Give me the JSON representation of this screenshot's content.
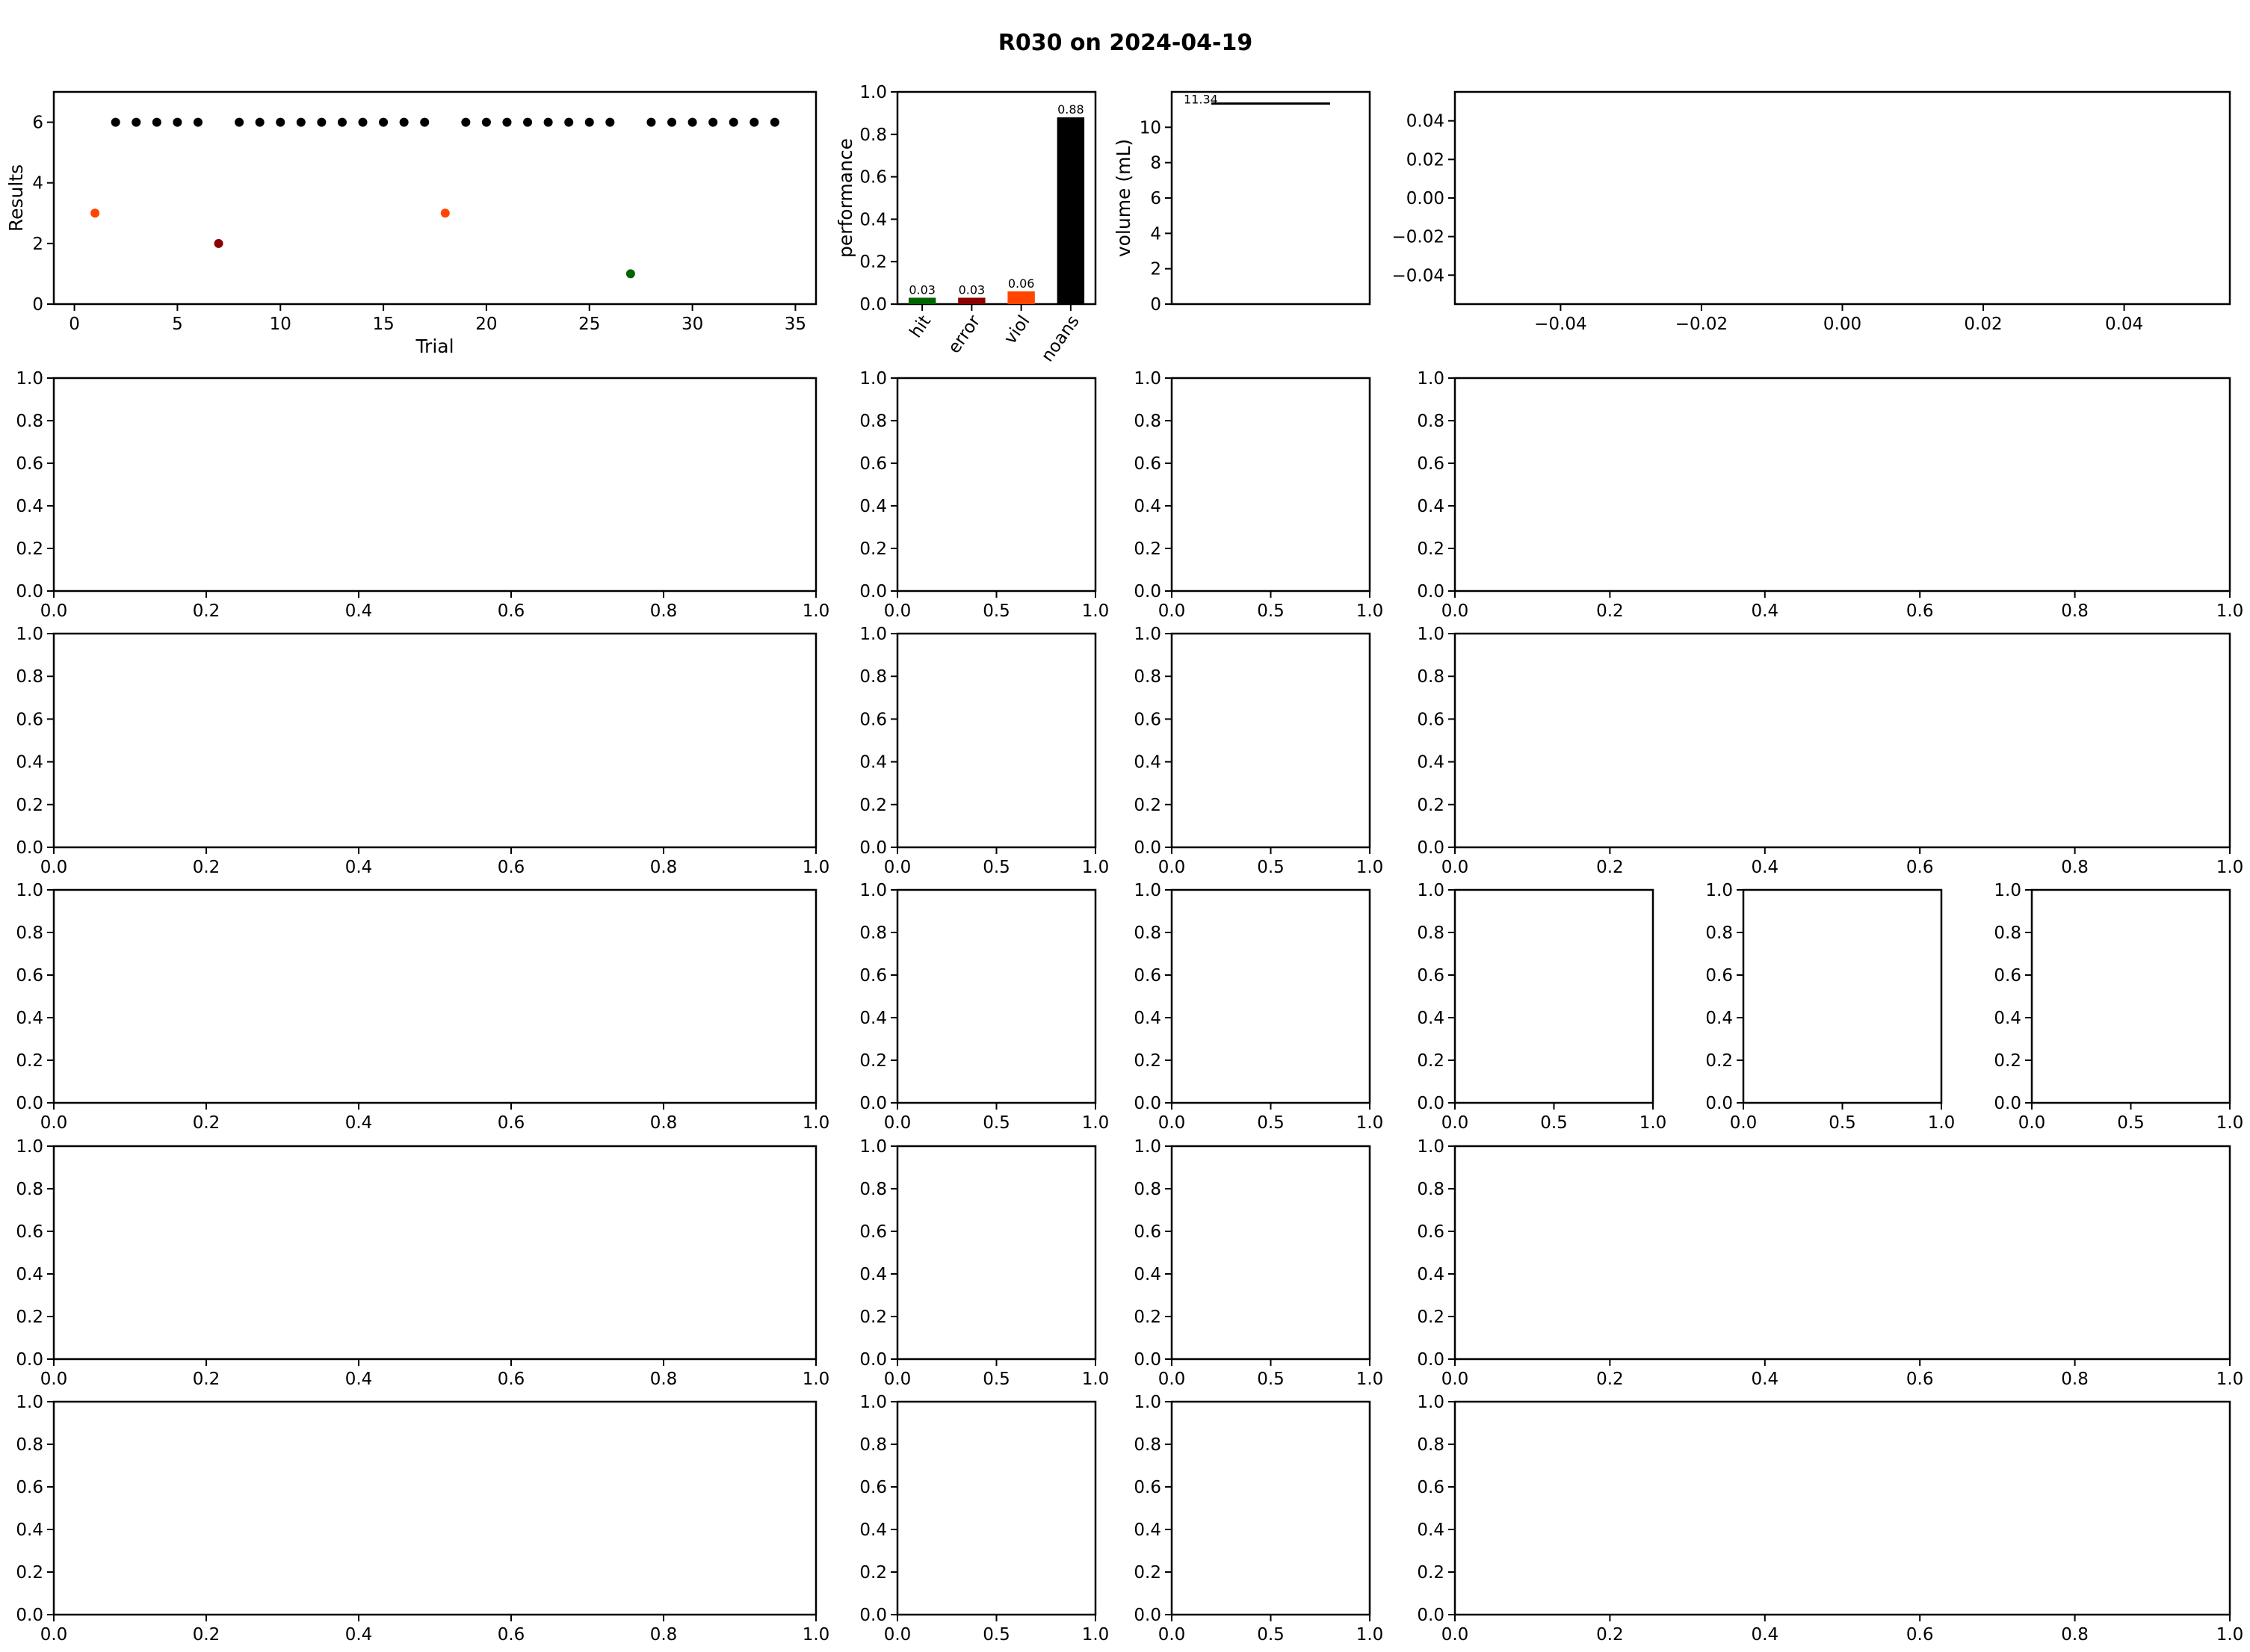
{
  "figure": {
    "title": "R030 on 2024-04-19",
    "background": "#ffffff"
  },
  "colors": {
    "hit": "#006400",
    "error": "#8b0000",
    "viol": "#ff4500",
    "noans": "#000000"
  },
  "chart_data": [
    {
      "type": "scatter",
      "xlabel": "Trial",
      "ylabel": "Results",
      "xlim": [
        -1,
        36
      ],
      "ylim": [
        0,
        7
      ],
      "xticks": [
        0,
        5,
        10,
        15,
        20,
        25,
        30,
        35
      ],
      "yticks": [
        0,
        2,
        4,
        6
      ],
      "points": [
        {
          "x": 1,
          "y": 3,
          "color": "#ff4500"
        },
        {
          "x": 2,
          "y": 6,
          "color": "#000000"
        },
        {
          "x": 3,
          "y": 6,
          "color": "#000000"
        },
        {
          "x": 4,
          "y": 6,
          "color": "#000000"
        },
        {
          "x": 5,
          "y": 6,
          "color": "#000000"
        },
        {
          "x": 6,
          "y": 6,
          "color": "#000000"
        },
        {
          "x": 7,
          "y": 2,
          "color": "#8b0000"
        },
        {
          "x": 8,
          "y": 6,
          "color": "#000000"
        },
        {
          "x": 9,
          "y": 6,
          "color": "#000000"
        },
        {
          "x": 10,
          "y": 6,
          "color": "#000000"
        },
        {
          "x": 11,
          "y": 6,
          "color": "#000000"
        },
        {
          "x": 12,
          "y": 6,
          "color": "#000000"
        },
        {
          "x": 13,
          "y": 6,
          "color": "#000000"
        },
        {
          "x": 14,
          "y": 6,
          "color": "#000000"
        },
        {
          "x": 15,
          "y": 6,
          "color": "#000000"
        },
        {
          "x": 16,
          "y": 6,
          "color": "#000000"
        },
        {
          "x": 17,
          "y": 6,
          "color": "#000000"
        },
        {
          "x": 18,
          "y": 3,
          "color": "#ff4500"
        },
        {
          "x": 19,
          "y": 6,
          "color": "#000000"
        },
        {
          "x": 20,
          "y": 6,
          "color": "#000000"
        },
        {
          "x": 21,
          "y": 6,
          "color": "#000000"
        },
        {
          "x": 22,
          "y": 6,
          "color": "#000000"
        },
        {
          "x": 23,
          "y": 6,
          "color": "#000000"
        },
        {
          "x": 24,
          "y": 6,
          "color": "#000000"
        },
        {
          "x": 25,
          "y": 6,
          "color": "#000000"
        },
        {
          "x": 26,
          "y": 6,
          "color": "#000000"
        },
        {
          "x": 27,
          "y": 1,
          "color": "#006400"
        },
        {
          "x": 28,
          "y": 6,
          "color": "#000000"
        },
        {
          "x": 29,
          "y": 6,
          "color": "#000000"
        },
        {
          "x": 30,
          "y": 6,
          "color": "#000000"
        },
        {
          "x": 31,
          "y": 6,
          "color": "#000000"
        },
        {
          "x": 32,
          "y": 6,
          "color": "#000000"
        },
        {
          "x": 33,
          "y": 6,
          "color": "#000000"
        },
        {
          "x": 34,
          "y": 6,
          "color": "#000000"
        }
      ]
    },
    {
      "type": "bar",
      "ylabel": "performance",
      "categories": [
        "hit",
        "error",
        "viol",
        "noans"
      ],
      "values": [
        0.03,
        0.03,
        0.06,
        0.88
      ],
      "value_labels": [
        "0.03",
        "0.03",
        "0.06",
        "0.88"
      ],
      "bar_colors": [
        "#006400",
        "#8b0000",
        "#ff4500",
        "#000000"
      ],
      "ylim": [
        0,
        1.0
      ],
      "yticks": [
        "0.0",
        "0.2",
        "0.4",
        "0.6",
        "0.8",
        "1.0"
      ]
    },
    {
      "type": "line",
      "ylabel": "volume (mL)",
      "line_value": 11.34,
      "line_label": "11.34",
      "line_xrange": [
        0.2,
        0.8
      ],
      "xlim": [
        0,
        1
      ],
      "ylim": [
        0,
        12
      ],
      "yticks": [
        "0",
        "2",
        "4",
        "6",
        "8",
        "10"
      ]
    },
    {
      "type": "scatter",
      "xlim": [
        -0.055,
        0.055
      ],
      "ylim": [
        -0.055,
        0.055
      ],
      "xticks": [
        "−0.04",
        "−0.02",
        "0.00",
        "0.02",
        "0.04"
      ],
      "yticks": [
        "0.04",
        "0.02",
        "0.00",
        "−0.02",
        "−0.04"
      ],
      "xtick_values": [
        -0.04,
        -0.02,
        0,
        0.02,
        0.04
      ],
      "ytick_values": [
        0.04,
        0.02,
        0,
        -0.02,
        -0.04
      ]
    }
  ],
  "empty_axes": {
    "ticks_unit": [
      "0.0",
      "0.2",
      "0.4",
      "0.6",
      "0.8",
      "1.0"
    ],
    "ticks_half": [
      "0.0",
      "0.5",
      "1.0"
    ]
  }
}
